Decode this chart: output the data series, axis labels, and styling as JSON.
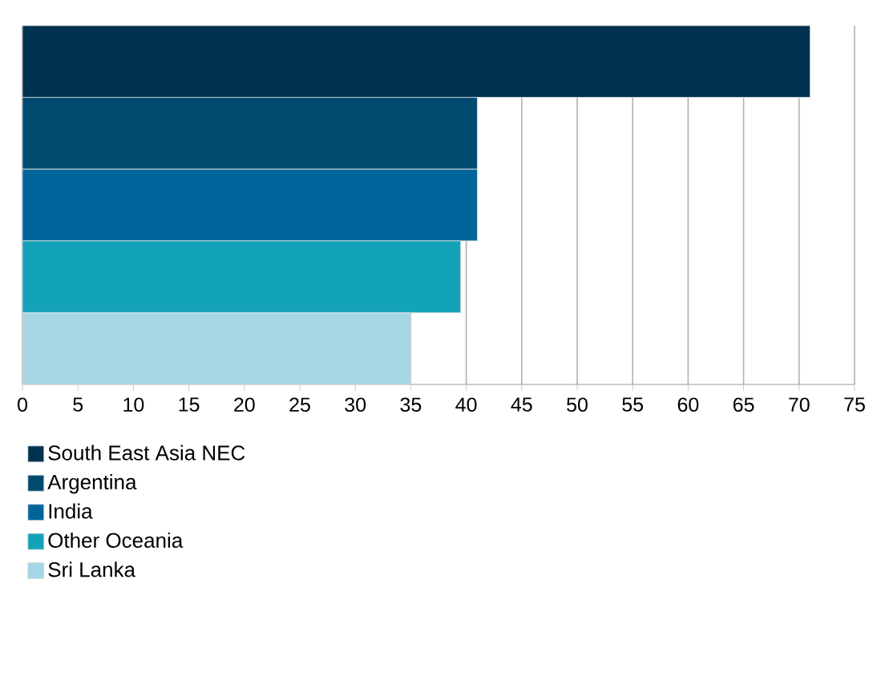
{
  "chart_data": {
    "type": "bar",
    "orientation": "horizontal",
    "categories": [
      null
    ],
    "series": [
      {
        "name": "South East Asia NEC",
        "color": "#003350",
        "values": [
          71
        ]
      },
      {
        "name": "Argentina",
        "color": "#004a70",
        "values": [
          41
        ]
      },
      {
        "name": "India",
        "color": "#00659a",
        "values": [
          41
        ]
      },
      {
        "name": "Other Oceania",
        "color": "#13a3b8",
        "values": [
          39.5
        ]
      },
      {
        "name": "Sri Lanka",
        "color": "#a6d6e3",
        "values": [
          35
        ]
      }
    ],
    "xlim": [
      0,
      75
    ],
    "xticks": [
      0,
      5,
      10,
      15,
      20,
      25,
      30,
      35,
      40,
      45,
      50,
      55,
      60,
      65,
      70,
      75
    ],
    "grid": "x",
    "legend": "bottom"
  }
}
